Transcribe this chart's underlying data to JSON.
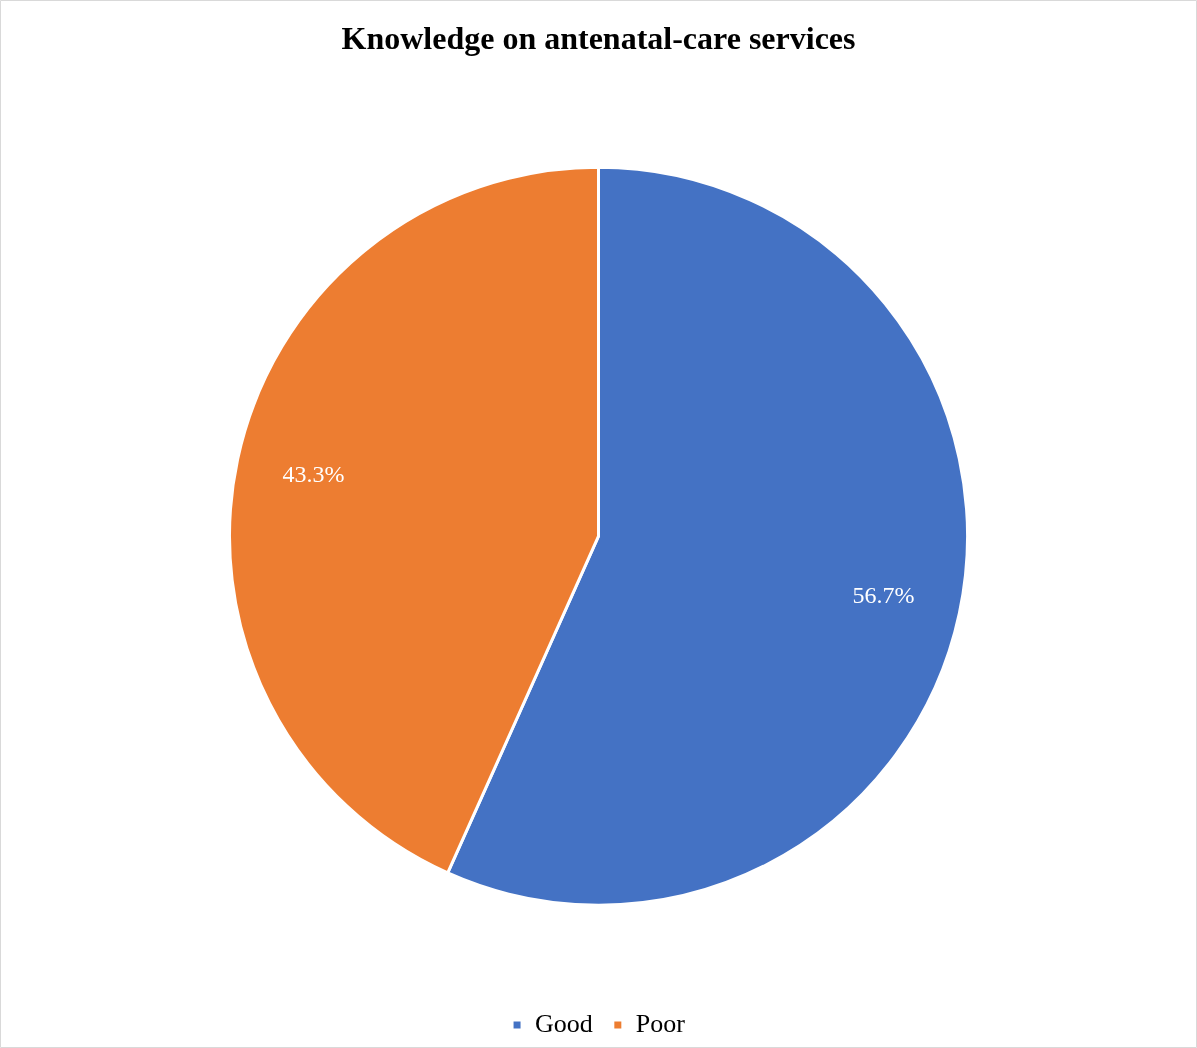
{
  "chart_data": {
    "type": "pie",
    "title": "Knowledge on antenatal-care services",
    "categories": [
      "Good",
      "Poor"
    ],
    "values": [
      56.7,
      43.3
    ],
    "colors": [
      "#4472c4",
      "#ed7d31"
    ],
    "value_labels": [
      "56.7%",
      "43.3%"
    ],
    "legend": "bottom"
  }
}
